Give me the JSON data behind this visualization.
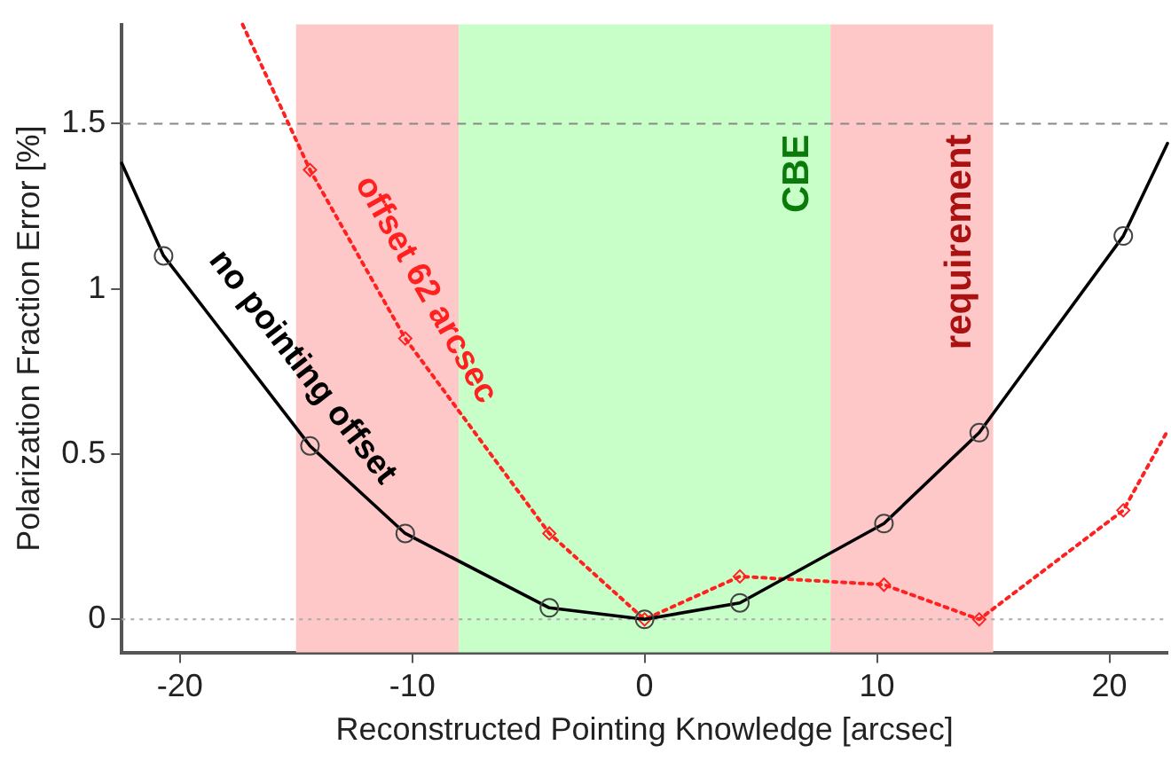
{
  "chart_data": {
    "type": "line",
    "xlabel": "Reconstructed Pointing Knowledge [arcsec]",
    "ylabel": "Polarization Fraction Error [%]",
    "xlim": [
      -22.5,
      22.5
    ],
    "xticks": [
      -20,
      -10,
      0,
      10,
      20
    ],
    "ylim": [
      -0.1,
      1.8
    ],
    "yticks": [
      0,
      0.5,
      1,
      1.5
    ],
    "grid": false,
    "legend": false,
    "series": [
      {
        "name": "no pointing offset",
        "color": "#000000",
        "marker": "circle",
        "line_style": "solid",
        "x": [
          -22.5,
          -20.7,
          -14.4,
          -10.3,
          -4.1,
          0,
          4.1,
          10.3,
          14.4,
          20.6,
          22.5
        ],
        "values": [
          1.38,
          1.1,
          0.525,
          0.26,
          0.035,
          0,
          0.05,
          0.29,
          0.565,
          1.16,
          1.44
        ]
      },
      {
        "name": "offset 62 arcsec",
        "color": "#ff2020",
        "marker": "diamond",
        "line_style": "dotted",
        "x": [
          -17.3,
          -14.4,
          -10.3,
          -4.1,
          0,
          4.1,
          10.3,
          14.4,
          20.6,
          22.5
        ],
        "values": [
          1.8,
          1.36,
          0.85,
          0.26,
          0,
          0.13,
          0.105,
          0,
          0.33,
          0.57
        ]
      }
    ],
    "bands": [
      {
        "axis": "x",
        "from": -15,
        "to": -8,
        "label": null,
        "color": "#ffc8c8"
      },
      {
        "axis": "x",
        "from": -8,
        "to": 8,
        "label": "CBE",
        "color": "#c8ffc8"
      },
      {
        "axis": "x",
        "from": 8,
        "to": 15,
        "label": "requirement",
        "color": "#ffc8c8"
      }
    ],
    "ref_lines": [
      {
        "axis": "y",
        "value": 1.5,
        "label": null,
        "color": "#888888",
        "line_style": "dashed"
      },
      {
        "axis": "y",
        "value": 0,
        "label": null,
        "color": "#aaaaaa",
        "line_style": "dotted"
      }
    ]
  }
}
